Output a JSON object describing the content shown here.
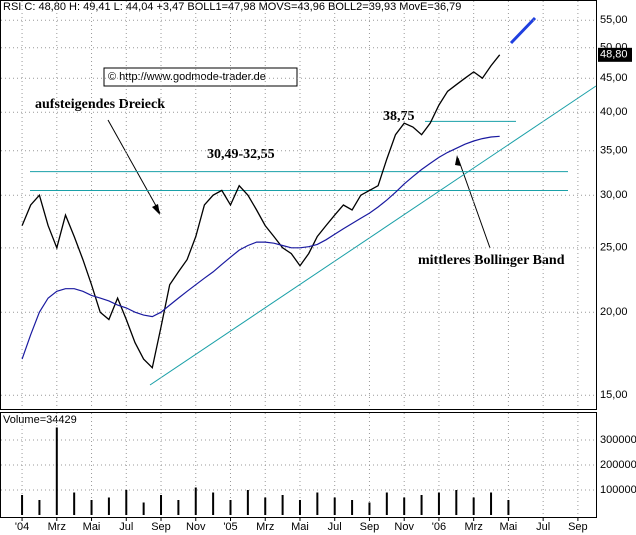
{
  "chart_data": [
    {
      "type": "line",
      "header": "RSI C: 48,80 H: 49,41 L: 44,04 +3,47 BOLL1=47,98 MOVS=43,96 BOLL2=39,93 MovE=36,79",
      "copyright": "© http://www.godmode-trader.de",
      "annotations": [
        "aufsteigendes Dreieck",
        "30,49-32,55",
        "38,75",
        "mittleres Bollinger Band"
      ],
      "hlines": [
        32.55,
        30.49,
        38.75
      ],
      "last_label": "48,80",
      "log": true,
      "grid": true,
      "xlim": [
        -1.27,
        33.1
      ],
      "ylim": [
        14.3,
        57
      ],
      "yticks": [
        {
          "value": 15,
          "label": "15,00"
        },
        {
          "value": 20,
          "label": "20,00"
        },
        {
          "value": 25,
          "label": "25,00"
        },
        {
          "value": 30,
          "label": "30,00"
        },
        {
          "value": 35,
          "label": "35,00"
        },
        {
          "value": 40,
          "label": "40,00"
        },
        {
          "value": 45,
          "label": "45,00"
        },
        {
          "value": 50,
          "label": "50,00"
        },
        {
          "value": 55,
          "label": "55,00"
        }
      ],
      "x": [
        0,
        0.5,
        1,
        1.5,
        2,
        2.5,
        3,
        3.5,
        4,
        4.5,
        5,
        5.5,
        6,
        6.5,
        7,
        7.5,
        8,
        8.5,
        9,
        9.5,
        10,
        10.5,
        11,
        11.5,
        12,
        12.5,
        13,
        13.5,
        14,
        14.5,
        15,
        15.5,
        16,
        16.5,
        17,
        17.5,
        18,
        18.5,
        19,
        19.5,
        20,
        20.5,
        21,
        21.5,
        22,
        22.5,
        23,
        23.5,
        24,
        24.5,
        25,
        25.5,
        26,
        26.5,
        27,
        27.5
      ],
      "series": [
        {
          "color": "#000000",
          "values": [
            27,
            29,
            30,
            27,
            25,
            28,
            26,
            24,
            22,
            20,
            19.5,
            21,
            19.5,
            18,
            17,
            16.5,
            19,
            22,
            23,
            24,
            26,
            29,
            30,
            30.5,
            29,
            31,
            30,
            28.5,
            27,
            26,
            25,
            24.5,
            23.5,
            24.5,
            26,
            27,
            28,
            29,
            28.5,
            30,
            30.5,
            31,
            34,
            37,
            38.5,
            38,
            37,
            38.5,
            41,
            43,
            44,
            45,
            46,
            45,
            47,
            48.8
          ]
        },
        {
          "color": "#1a1aa0",
          "values": [
            17,
            18.5,
            20,
            21,
            21.5,
            21.7,
            21.7,
            21.5,
            21.2,
            21,
            20.8,
            20.5,
            20.3,
            20,
            19.8,
            19.7,
            20,
            20.5,
            21,
            21.5,
            22,
            22.5,
            23,
            23.6,
            24.2,
            24.8,
            25.2,
            25.5,
            25.5,
            25.4,
            25.2,
            25,
            25,
            25.1,
            25.3,
            25.7,
            26.2,
            26.7,
            27.2,
            27.7,
            28.2,
            28.8,
            29.5,
            30.3,
            31.2,
            32,
            32.8,
            33.5,
            34.2,
            34.8,
            35.3,
            35.8,
            36.2,
            36.5,
            36.7,
            36.8
          ]
        }
      ]
    },
    {
      "type": "bar",
      "label": "Volume=34429",
      "grid": true,
      "xlim": [
        -1.27,
        33.1
      ],
      "ylim": [
        0,
        380000
      ],
      "yticks": [
        100000,
        200000,
        300000
      ],
      "xticks": [
        {
          "value": 0,
          "label": "'04"
        },
        {
          "value": 2,
          "label": "Mrz"
        },
        {
          "value": 4,
          "label": "Mai"
        },
        {
          "value": 6,
          "label": "Jul"
        },
        {
          "value": 8,
          "label": "Sep"
        },
        {
          "value": 10,
          "label": "Nov"
        },
        {
          "value": 12,
          "label": "'05"
        },
        {
          "value": 14,
          "label": "Mrz"
        },
        {
          "value": 16,
          "label": "Mai"
        },
        {
          "value": 18,
          "label": "Jul"
        },
        {
          "value": 20,
          "label": "Sep"
        },
        {
          "value": 22,
          "label": "Nov"
        },
        {
          "value": 24,
          "label": "'06"
        },
        {
          "value": 26,
          "label": "Mrz"
        },
        {
          "value": 28,
          "label": "Mai"
        },
        {
          "value": 30,
          "label": "Jul"
        },
        {
          "value": 32,
          "label": "Sep"
        }
      ],
      "x": [
        0,
        1,
        2,
        3,
        4,
        5,
        6,
        7,
        8,
        9,
        10,
        11,
        12,
        13,
        14,
        15,
        16,
        17,
        18,
        19,
        20,
        21,
        22,
        23,
        24,
        25,
        26,
        27,
        28
      ],
      "color": "#000000",
      "values": [
        80000,
        60000,
        350000,
        90000,
        60000,
        70000,
        100000,
        50000,
        80000,
        60000,
        110000,
        90000,
        60000,
        100000,
        70000,
        80000,
        60000,
        90000,
        70000,
        60000,
        50000,
        90000,
        70000,
        80000,
        90000,
        100000,
        70000,
        90000,
        60000
      ]
    }
  ]
}
